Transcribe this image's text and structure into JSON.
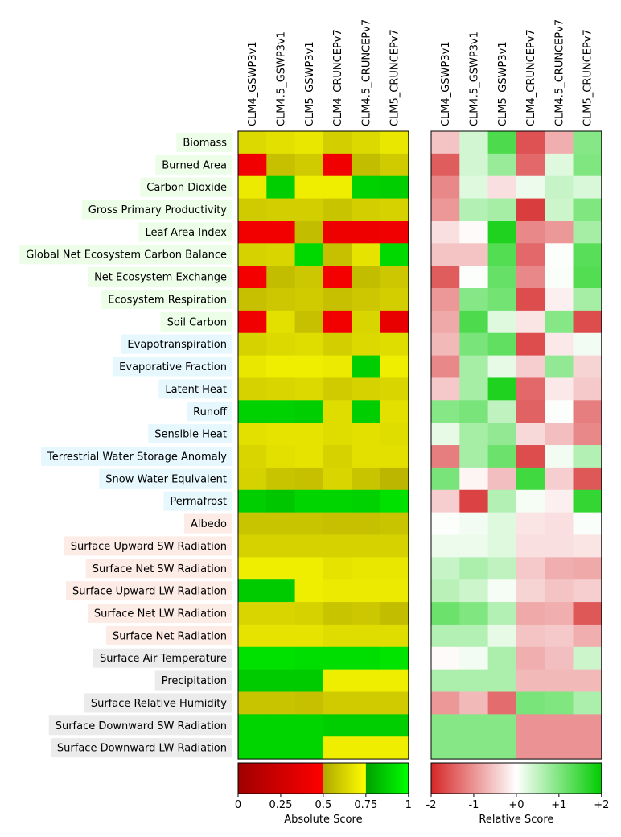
{
  "chart_data": {
    "type": "heatmap",
    "models": [
      "CLM4_GSWP3v1",
      "CLM4.5_GSWP3v1",
      "CLM5_GSWP3v1",
      "CLM4_CRUNCEPv7",
      "CLM4.5_CRUNCEPv7",
      "CLM5_CRUNCEPv7"
    ],
    "rows": [
      {
        "label": "Biomass",
        "group": "ecosystem"
      },
      {
        "label": "Burned Area",
        "group": "ecosystem"
      },
      {
        "label": "Carbon Dioxide",
        "group": "ecosystem"
      },
      {
        "label": "Gross Primary Productivity",
        "group": "ecosystem"
      },
      {
        "label": "Leaf Area Index",
        "group": "ecosystem"
      },
      {
        "label": "Global Net Ecosystem Carbon Balance",
        "group": "ecosystem"
      },
      {
        "label": "Net Ecosystem Exchange",
        "group": "ecosystem"
      },
      {
        "label": "Ecosystem Respiration",
        "group": "ecosystem"
      },
      {
        "label": "Soil Carbon",
        "group": "ecosystem"
      },
      {
        "label": "Evapotranspiration",
        "group": "hydrology"
      },
      {
        "label": "Evaporative Fraction",
        "group": "hydrology"
      },
      {
        "label": "Latent Heat",
        "group": "hydrology"
      },
      {
        "label": "Runoff",
        "group": "hydrology"
      },
      {
        "label": "Sensible Heat",
        "group": "hydrology"
      },
      {
        "label": "Terrestrial Water Storage Anomaly",
        "group": "hydrology"
      },
      {
        "label": "Snow Water Equivalent",
        "group": "hydrology"
      },
      {
        "label": "Permafrost",
        "group": "hydrology"
      },
      {
        "label": "Albedo",
        "group": "radiation"
      },
      {
        "label": "Surface Upward SW Radiation",
        "group": "radiation"
      },
      {
        "label": "Surface Net SW Radiation",
        "group": "radiation"
      },
      {
        "label": "Surface Upward LW Radiation",
        "group": "radiation"
      },
      {
        "label": "Surface Net LW Radiation",
        "group": "radiation"
      },
      {
        "label": "Surface Net Radiation",
        "group": "radiation"
      },
      {
        "label": "Surface Air Temperature",
        "group": "forcing"
      },
      {
        "label": "Precipitation",
        "group": "forcing"
      },
      {
        "label": "Surface Relative Humidity",
        "group": "forcing"
      },
      {
        "label": "Surface Downward SW Radiation",
        "group": "forcing"
      },
      {
        "label": "Surface Downward LW Radiation",
        "group": "forcing"
      }
    ],
    "group_colors": {
      "ecosystem": "#ecfde8",
      "hydrology": "#e6f8fe",
      "radiation": "#fdebe6",
      "forcing": "#ebebeb"
    },
    "absolute_scores": [
      [
        0.64,
        0.66,
        0.68,
        0.61,
        0.64,
        0.68
      ],
      [
        0.42,
        0.57,
        0.6,
        0.42,
        0.56,
        0.6
      ],
      [
        0.69,
        0.87,
        0.7,
        0.7,
        0.88,
        0.87
      ],
      [
        0.6,
        0.61,
        0.61,
        0.58,
        0.61,
        0.62
      ],
      [
        0.43,
        0.43,
        0.56,
        0.41,
        0.41,
        0.42
      ],
      [
        0.62,
        0.63,
        0.9,
        0.57,
        0.67,
        0.9
      ],
      [
        0.44,
        0.56,
        0.59,
        0.44,
        0.56,
        0.59
      ],
      [
        0.57,
        0.59,
        0.6,
        0.57,
        0.59,
        0.61
      ],
      [
        0.42,
        0.66,
        0.57,
        0.43,
        0.63,
        0.38
      ],
      [
        0.62,
        0.64,
        0.65,
        0.61,
        0.64,
        0.65
      ],
      [
        0.68,
        0.7,
        0.7,
        0.69,
        0.87,
        0.7
      ],
      [
        0.62,
        0.63,
        0.64,
        0.6,
        0.62,
        0.63
      ],
      [
        0.88,
        0.88,
        0.87,
        0.65,
        0.87,
        0.66
      ],
      [
        0.66,
        0.67,
        0.67,
        0.65,
        0.66,
        0.65
      ],
      [
        0.63,
        0.66,
        0.67,
        0.62,
        0.66,
        0.66
      ],
      [
        0.62,
        0.58,
        0.57,
        0.63,
        0.58,
        0.54
      ],
      [
        0.87,
        0.85,
        0.89,
        0.89,
        0.88,
        0.92
      ],
      [
        0.58,
        0.58,
        0.58,
        0.57,
        0.57,
        0.58
      ],
      [
        0.62,
        0.62,
        0.62,
        0.62,
        0.62,
        0.62
      ],
      [
        0.7,
        0.7,
        0.7,
        0.67,
        0.68,
        0.68
      ],
      [
        0.86,
        0.86,
        0.7,
        0.69,
        0.69,
        0.69
      ],
      [
        0.63,
        0.63,
        0.62,
        0.58,
        0.59,
        0.56
      ],
      [
        0.67,
        0.67,
        0.67,
        0.65,
        0.65,
        0.65
      ],
      [
        0.92,
        0.92,
        0.91,
        0.91,
        0.91,
        0.93
      ],
      [
        0.86,
        0.86,
        0.86,
        0.7,
        0.7,
        0.7
      ],
      [
        0.58,
        0.58,
        0.57,
        0.6,
        0.6,
        0.6
      ],
      [
        0.89,
        0.89,
        0.89,
        0.87,
        0.87,
        0.87
      ],
      [
        0.89,
        0.89,
        0.89,
        0.7,
        0.7,
        0.7
      ]
    ],
    "relative_scores": [
      [
        -0.55,
        0.35,
        1.4,
        -1.6,
        -0.75,
        0.95
      ],
      [
        -1.5,
        0.35,
        0.8,
        -1.4,
        0.25,
        1.0
      ],
      [
        -1.1,
        0.25,
        -0.3,
        0.15,
        0.45,
        0.3
      ],
      [
        -0.95,
        0.6,
        0.7,
        -1.8,
        0.4,
        1.0
      ],
      [
        -0.3,
        -0.05,
        1.75,
        -1.1,
        -0.95,
        0.7
      ],
      [
        -0.55,
        -0.55,
        1.35,
        -1.4,
        0.02,
        1.3
      ],
      [
        -1.5,
        0.02,
        1.2,
        -1.1,
        0.05,
        1.35
      ],
      [
        -0.95,
        0.95,
        1.1,
        -1.65,
        -0.15,
        0.7
      ],
      [
        -0.8,
        1.4,
        0.25,
        -0.25,
        0.95,
        -1.65
      ],
      [
        -0.65,
        1.05,
        1.25,
        -1.65,
        -0.2,
        0.1
      ],
      [
        -1.1,
        0.7,
        0.2,
        -0.45,
        0.85,
        -0.4
      ],
      [
        -0.5,
        0.7,
        1.75,
        -1.4,
        -0.2,
        -0.5
      ],
      [
        0.95,
        1.05,
        0.5,
        -1.45,
        0.02,
        -1.2
      ],
      [
        0.2,
        0.7,
        0.85,
        -0.35,
        -0.6,
        -1.1
      ],
      [
        -1.2,
        0.7,
        1.15,
        -1.65,
        0.1,
        0.6
      ],
      [
        1.05,
        -0.1,
        -0.6,
        1.5,
        -0.45,
        -1.55
      ],
      [
        -0.45,
        -1.75,
        0.6,
        0.08,
        -0.15,
        1.6
      ],
      [
        0.02,
        0.1,
        0.25,
        -0.25,
        -0.3,
        0.04
      ],
      [
        0.15,
        0.15,
        0.25,
        -0.3,
        -0.3,
        -0.25
      ],
      [
        0.45,
        0.65,
        0.5,
        -0.5,
        -0.75,
        -0.8
      ],
      [
        0.55,
        0.4,
        0.08,
        -0.4,
        -0.55,
        -0.45
      ],
      [
        1.15,
        1.0,
        0.6,
        -0.8,
        -0.75,
        -1.55
      ],
      [
        0.6,
        0.6,
        0.2,
        -0.55,
        -0.5,
        -0.75
      ],
      [
        -0.05,
        0.1,
        0.65,
        -0.75,
        -0.6,
        0.4
      ],
      [
        0.65,
        0.65,
        0.65,
        -0.65,
        -0.65,
        -0.65
      ],
      [
        -0.95,
        -0.65,
        -1.35,
        1.05,
        1.0,
        0.65
      ],
      [
        0.95,
        0.95,
        0.95,
        -1.0,
        -1.0,
        -1.0
      ],
      [
        0.95,
        0.95,
        0.95,
        -1.0,
        -1.0,
        -1.0
      ]
    ],
    "absolute_colorbar": {
      "label": "Absolute Score",
      "ticks": [
        "0",
        "0.25",
        "0.5",
        "0.75",
        "1"
      ],
      "range": [
        0,
        1
      ],
      "colors": [
        "#ff0000",
        "#ffff00",
        "#00ff00"
      ]
    },
    "relative_colorbar": {
      "label": "Relative Score",
      "ticks": [
        "-2",
        "-1",
        "+0",
        "+1",
        "+2"
      ],
      "range": [
        -2,
        2
      ],
      "colors": [
        "#d62728",
        "#ffffff",
        "#00cc00"
      ]
    }
  }
}
